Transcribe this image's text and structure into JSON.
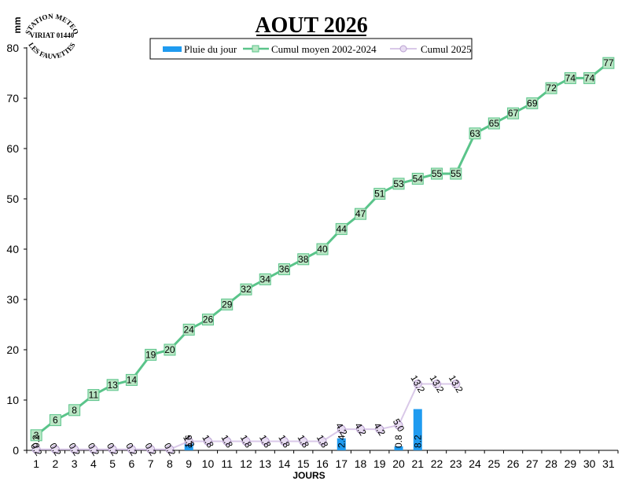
{
  "station_logo": {
    "top": "STATION METEO",
    "middle": "VIRIAT 01440",
    "bottom": "LES FAUVETTES"
  },
  "colors": {
    "rain_bar": "#1f9bf0",
    "avg_line": "#5ac48a",
    "avg_marker_fill": "#b9e6c4",
    "cum2025_line": "#d9c8e8",
    "cum2025_marker_fill": "#e8dcf2"
  },
  "chart_data": {
    "type": "bar",
    "title": "AOUT 2026",
    "xlabel": "JOURS",
    "ylabel": "mm",
    "ylim": [
      0,
      80
    ],
    "yticks": [
      0,
      10,
      20,
      30,
      40,
      50,
      60,
      70,
      80
    ],
    "categories": [
      "1",
      "2",
      "3",
      "4",
      "5",
      "6",
      "7",
      "8",
      "9",
      "10",
      "11",
      "12",
      "13",
      "14",
      "15",
      "16",
      "17",
      "18",
      "19",
      "20",
      "21",
      "22",
      "23",
      "24",
      "25",
      "26",
      "27",
      "28",
      "29",
      "30",
      "31"
    ],
    "legend_position": "top-center",
    "grid": false,
    "series": [
      {
        "name": "Pluie du jour",
        "type": "bar",
        "values": [
          0.2,
          null,
          null,
          null,
          null,
          null,
          null,
          null,
          1.6,
          null,
          null,
          null,
          null,
          null,
          null,
          null,
          2.4,
          null,
          null,
          0.8,
          8.2,
          null,
          null,
          null,
          null,
          null,
          null,
          null,
          null,
          null,
          null
        ],
        "labels": [
          "0.2",
          null,
          null,
          null,
          null,
          null,
          null,
          null,
          "1.6",
          null,
          null,
          null,
          null,
          null,
          null,
          null,
          "2.4",
          null,
          null,
          "0.8",
          "8.2",
          null,
          null,
          null,
          null,
          null,
          null,
          null,
          null,
          null,
          null
        ]
      },
      {
        "name": "Cumul moyen 2002-2024",
        "type": "line",
        "values": [
          3,
          6,
          8,
          11,
          13,
          14,
          19,
          20,
          24,
          26,
          29,
          32,
          34,
          36,
          38,
          40,
          44,
          47,
          51,
          53,
          54,
          55,
          55,
          63,
          65,
          67,
          69,
          72,
          74,
          74,
          77
        ],
        "labels": [
          "3",
          "6",
          "8",
          "11",
          "13",
          "14",
          "19",
          "20",
          "24",
          "26",
          "29",
          "32",
          "34",
          "36",
          "38",
          "40",
          "44",
          "47",
          "51",
          "53",
          "54",
          "55",
          "55",
          "63",
          "65",
          "67",
          "69",
          "72",
          "74",
          "74",
          "77"
        ]
      },
      {
        "name": "Cumul 2025",
        "type": "line",
        "values": [
          0.2,
          0.2,
          0.2,
          0.2,
          0.2,
          0.2,
          0.2,
          0.2,
          1.8,
          1.8,
          1.8,
          1.8,
          1.8,
          1.8,
          1.8,
          1.8,
          4.2,
          4.2,
          4.2,
          5.0,
          13.2,
          13.2,
          13.2,
          null,
          null,
          null,
          null,
          null,
          null,
          null,
          null
        ],
        "labels": [
          "0.2",
          "0.2",
          "0.2",
          "0.2",
          "0.2",
          "0.2",
          "0.2",
          "0.2",
          "1.8",
          "1.8",
          "1.8",
          "1.8",
          "1.8",
          "1.8",
          "1.8",
          "1.8",
          "4.2",
          "4.2",
          "4.2",
          "5.0",
          "13.2",
          "13.2",
          "13.2",
          null,
          null,
          null,
          null,
          null,
          null,
          null,
          null
        ]
      }
    ]
  }
}
